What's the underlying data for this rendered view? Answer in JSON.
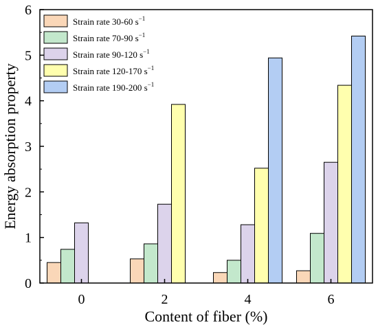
{
  "chart_data": {
    "type": "bar",
    "title": "",
    "xlabel": "Content of fiber (%)",
    "ylabel": "Energy absorption property",
    "categories": [
      "0",
      "2",
      "4",
      "6"
    ],
    "ylim": [
      0,
      6
    ],
    "yticks": [
      "0",
      "1",
      "2",
      "3",
      "4",
      "5",
      "6"
    ],
    "grid": false,
    "legend_position": "top-left",
    "series": [
      {
        "name": "Strain rate 30-60 s",
        "sup": "−1",
        "color": "#FAD7B8",
        "values": [
          0.45,
          0.53,
          0.23,
          0.27
        ]
      },
      {
        "name": "Strain rate 70-90 s",
        "sup": "−1",
        "color": "#C3E8CC",
        "values": [
          0.74,
          0.86,
          0.5,
          1.09
        ]
      },
      {
        "name": "Strain rate 90-120 s",
        "sup": "−1",
        "color": "#DCD3EB",
        "values": [
          1.32,
          1.73,
          1.28,
          2.65
        ]
      },
      {
        "name": "Strain rate 120-170 s",
        "sup": "−1",
        "color": "#FFFFAE",
        "values": [
          null,
          3.92,
          2.52,
          4.34
        ]
      },
      {
        "name": "Strain rate 190-200 s",
        "sup": "−1",
        "color": "#B3CDF3",
        "values": [
          null,
          null,
          4.94,
          5.42
        ]
      }
    ]
  }
}
